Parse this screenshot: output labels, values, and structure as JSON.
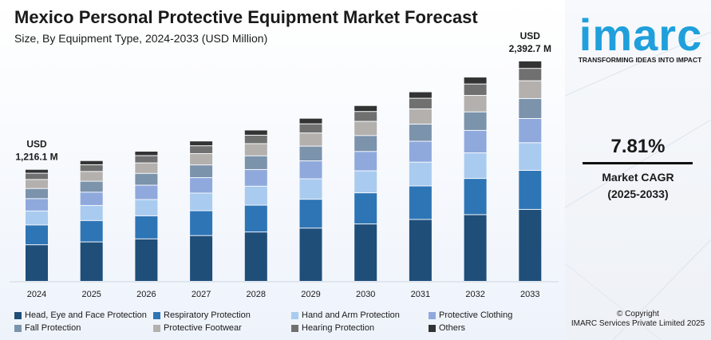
{
  "chart_data": {
    "type": "bar",
    "stacked": true,
    "title": "Mexico Personal Protective Equipment Market Forecast",
    "subtitle": "Size, By Equipment Type, 2024-2033 (USD Million)",
    "categories": [
      "2024",
      "2025",
      "2026",
      "2027",
      "2028",
      "2029",
      "2030",
      "2031",
      "2032",
      "2033"
    ],
    "totals": [
      1216.1,
      1311.1,
      1413.5,
      1523.9,
      1642.7,
      1770.8,
      1909.0,
      2057.8,
      2218.3,
      2392.7
    ],
    "annotations": [
      {
        "category": "2024",
        "line1": "USD",
        "line2": "1,216.1 M"
      },
      {
        "category": "2033",
        "line1": "USD",
        "line2": "2,392.7 M"
      }
    ],
    "series": [
      {
        "name": "Head, Eye and Face Protection",
        "color": "#1f4e79",
        "values": [
          397,
          428,
          461,
          497,
          536,
          578,
          623,
          672,
          724,
          781
        ]
      },
      {
        "name": "Respiratory Protection",
        "color": "#2e75b6",
        "values": [
          215,
          232,
          250,
          270,
          291,
          313,
          338,
          364,
          393,
          424
        ]
      },
      {
        "name": "Hand and Arm Protection",
        "color": "#a9cbef",
        "values": [
          152,
          164,
          177,
          191,
          206,
          222,
          239,
          258,
          278,
          300
        ]
      },
      {
        "name": "Protective Clothing",
        "color": "#8fa9dc",
        "values": [
          134,
          144,
          156,
          168,
          181,
          195,
          210,
          227,
          244,
          263
        ]
      },
      {
        "name": "Fall Protection",
        "color": "#7b93ab",
        "values": [
          110,
          119,
          128,
          138,
          149,
          160,
          173,
          186,
          201,
          217
        ]
      },
      {
        "name": "Protective Footwear",
        "color": "#b3b0ad",
        "values": [
          98,
          106,
          114,
          123,
          132,
          143,
          154,
          166,
          179,
          193
        ]
      },
      {
        "name": "Hearing Protection",
        "color": "#707070",
        "values": [
          68,
          73,
          79,
          85,
          92,
          99,
          107,
          115,
          124,
          134
        ]
      },
      {
        "name": "Others",
        "color": "#333333",
        "values": [
          42,
          45,
          48,
          52,
          56,
          61,
          65,
          70,
          75,
          81
        ]
      }
    ],
    "ylim": [
      0,
      2600
    ],
    "grid": false,
    "legend": "bottom"
  },
  "sidebar": {
    "logo": "imarc",
    "tagline": "TRANSFORMING IDEAS INTO IMPACT",
    "cagr_value": "7.81%",
    "cagr_label": "Market CAGR",
    "cagr_period": "(2025-2033)",
    "copyright_line1": "© Copyright",
    "copyright_line2": "IMARC Services Private Limited 2025"
  },
  "colors": {
    "brand": "#1fa0dc",
    "background_panel": "#eef3fb"
  }
}
